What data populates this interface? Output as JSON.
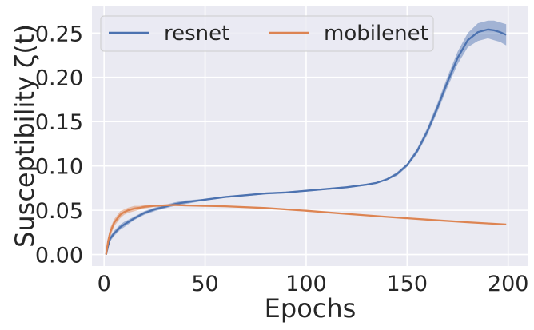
{
  "chart_data": {
    "type": "line",
    "xlabel": "Epochs",
    "ylabel": "Susceptibility ζ(t)",
    "xlim": [
      -6,
      210
    ],
    "ylim": [
      -0.013,
      0.28
    ],
    "x_ticks": [
      0,
      50,
      100,
      150,
      200
    ],
    "x_tick_labels": [
      "0",
      "50",
      "100",
      "150",
      "200"
    ],
    "y_ticks": [
      0.0,
      0.05,
      0.1,
      0.15,
      0.2,
      0.25
    ],
    "y_tick_labels": [
      "0.00",
      "0.05",
      "0.10",
      "0.15",
      "0.20",
      "0.25"
    ],
    "grid": true,
    "background": "#eaeaf2",
    "legend": {
      "placement": "top-left",
      "columns": 2
    },
    "series": [
      {
        "name": "resnet",
        "color": "#4c72b0",
        "x": [
          1,
          2,
          3,
          5,
          8,
          10,
          15,
          20,
          25,
          30,
          35,
          40,
          50,
          60,
          70,
          80,
          90,
          100,
          110,
          120,
          130,
          135,
          140,
          145,
          150,
          155,
          160,
          165,
          170,
          175,
          180,
          185,
          190,
          193,
          196,
          199
        ],
        "y": [
          0.0,
          0.01,
          0.018,
          0.024,
          0.031,
          0.034,
          0.041,
          0.047,
          0.051,
          0.054,
          0.057,
          0.059,
          0.062,
          0.065,
          0.067,
          0.069,
          0.07,
          0.072,
          0.074,
          0.076,
          0.079,
          0.081,
          0.085,
          0.091,
          0.101,
          0.117,
          0.139,
          0.166,
          0.195,
          0.222,
          0.242,
          0.251,
          0.254,
          0.253,
          0.251,
          0.248
        ],
        "band": [
          0,
          0.002,
          0.003,
          0.003,
          0.003,
          0.003,
          0.002,
          0.002,
          0.002,
          0.002,
          0.002,
          0.002,
          0.001,
          0.001,
          0.001,
          0.001,
          0.001,
          0.001,
          0.001,
          0.001,
          0.001,
          0.001,
          0.001,
          0.002,
          0.002,
          0.003,
          0.004,
          0.005,
          0.006,
          0.007,
          0.008,
          0.01,
          0.01,
          0.011,
          0.011,
          0.012
        ]
      },
      {
        "name": "mobilenet",
        "color": "#dd8452",
        "x": [
          1,
          2,
          3,
          5,
          8,
          10,
          12,
          15,
          18,
          20,
          25,
          30,
          35,
          40,
          50,
          60,
          80,
          100,
          120,
          140,
          160,
          180,
          199
        ],
        "y": [
          0.0,
          0.015,
          0.025,
          0.036,
          0.045,
          0.048,
          0.05,
          0.052,
          0.053,
          0.054,
          0.055,
          0.0555,
          0.056,
          0.0555,
          0.055,
          0.0545,
          0.0525,
          0.0495,
          0.046,
          0.0425,
          0.0395,
          0.0365,
          0.034
        ],
        "band": [
          0,
          0.004,
          0.005,
          0.004,
          0.004,
          0.003,
          0.003,
          0.003,
          0.002,
          0.002,
          0.001,
          0.001,
          0.001,
          0.001,
          0.0005,
          0.0005,
          0.0005,
          0.0005,
          0.0005,
          0.0005,
          0.0005,
          0.0005,
          0.0005
        ]
      }
    ]
  }
}
